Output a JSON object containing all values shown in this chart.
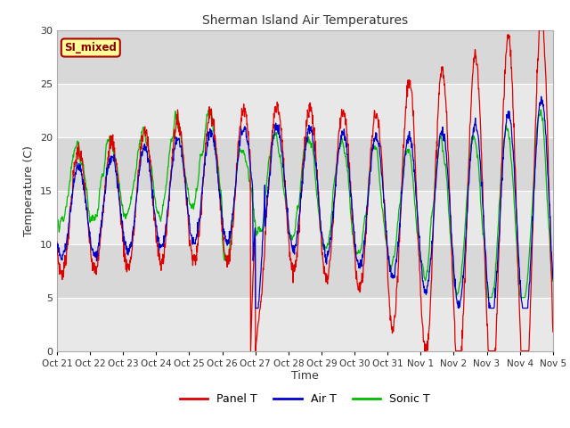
{
  "title": "Sherman Island Air Temperatures",
  "xlabel": "Time",
  "ylabel": "Temperature (C)",
  "ylim": [
    0,
    30
  ],
  "xlim_labels": [
    "Oct 21",
    "Oct 22",
    "Oct 23",
    "Oct 24",
    "Oct 25",
    "Oct 26",
    "Oct 27",
    "Oct 28",
    "Oct 29",
    "Oct 30",
    "Oct 31",
    "Nov 1",
    "Nov 2",
    "Nov 3",
    "Nov 4",
    "Nov 5"
  ],
  "annotation_text": "SI_mixed",
  "colors": {
    "panel_t": "#dd0000",
    "air_t": "#0000cc",
    "sonic_t": "#00bb00",
    "annotation_bg": "#ffff99",
    "annotation_border": "#aa0000",
    "annotation_text": "#880000",
    "band_light": "#e8e8e8",
    "band_dark": "#d8d8d8",
    "grid_line": "#ffffff"
  },
  "legend_labels": [
    "Panel T",
    "Air T",
    "Sonic T"
  ]
}
